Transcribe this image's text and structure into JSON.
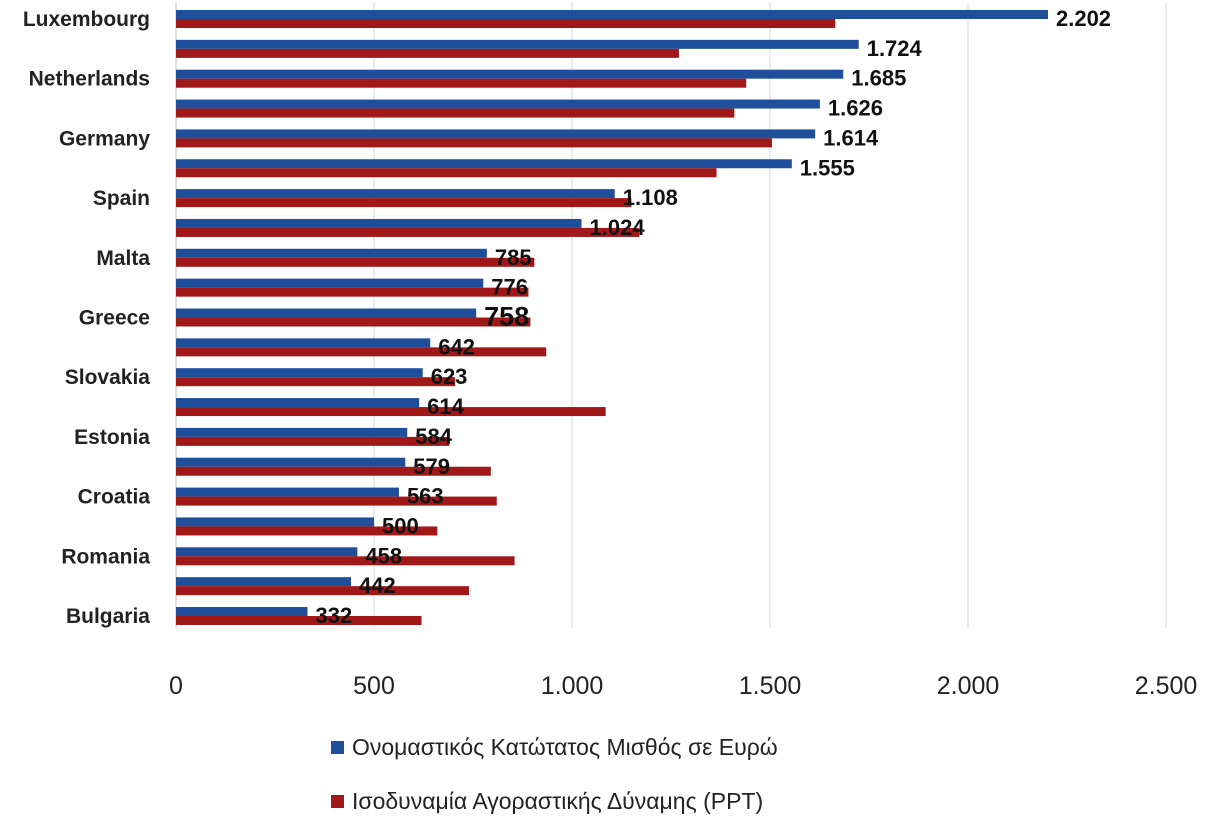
{
  "chart_data": {
    "type": "bar",
    "orientation": "horizontal",
    "categories": [
      "Luxembourg",
      "",
      "Netherlands",
      "",
      "Germany",
      "",
      "Spain",
      "",
      "Malta",
      "",
      "Greece",
      "",
      "Slovakia",
      "",
      "Estonia",
      "",
      "Croatia",
      "",
      "Romania",
      "",
      "Bulgaria"
    ],
    "series": [
      {
        "name": "Ονομαστικός Κατώτατος Μισθός σε Ευρώ",
        "color": "#1F4E9A",
        "values": [
          2202,
          1724,
          1685,
          1626,
          1614,
          1555,
          1108,
          1024,
          785,
          776,
          758,
          642,
          623,
          614,
          584,
          579,
          563,
          500,
          458,
          442,
          332
        ],
        "labels": [
          "2.202",
          "1.724",
          "1.685",
          "1.626",
          "1.614",
          "1.555",
          "1.108",
          "1.024",
          "785",
          "776",
          "758",
          "642",
          "623",
          "614",
          "584",
          "579",
          "563",
          "500",
          "458",
          "442",
          "332"
        ]
      },
      {
        "name": "Ισοδυναμία Αγοραστικής Δύναμης (PPT)",
        "color": "#A01818",
        "values": [
          1665,
          1270,
          1440,
          1410,
          1505,
          1365,
          1150,
          1170,
          905,
          890,
          895,
          935,
          705,
          1085,
          690,
          795,
          810,
          660,
          855,
          740,
          620
        ]
      }
    ],
    "emphasized_label_index": 10,
    "xlim": [
      0,
      2500
    ],
    "xticks": [
      0,
      500,
      1000,
      1500,
      2000,
      2500
    ],
    "xtick_labels": [
      "0",
      "500",
      "1.000",
      "1.500",
      "2.000",
      "2.500"
    ],
    "grid": true,
    "legend_position": "bottom",
    "title": "",
    "xlabel": "",
    "ylabel": ""
  }
}
